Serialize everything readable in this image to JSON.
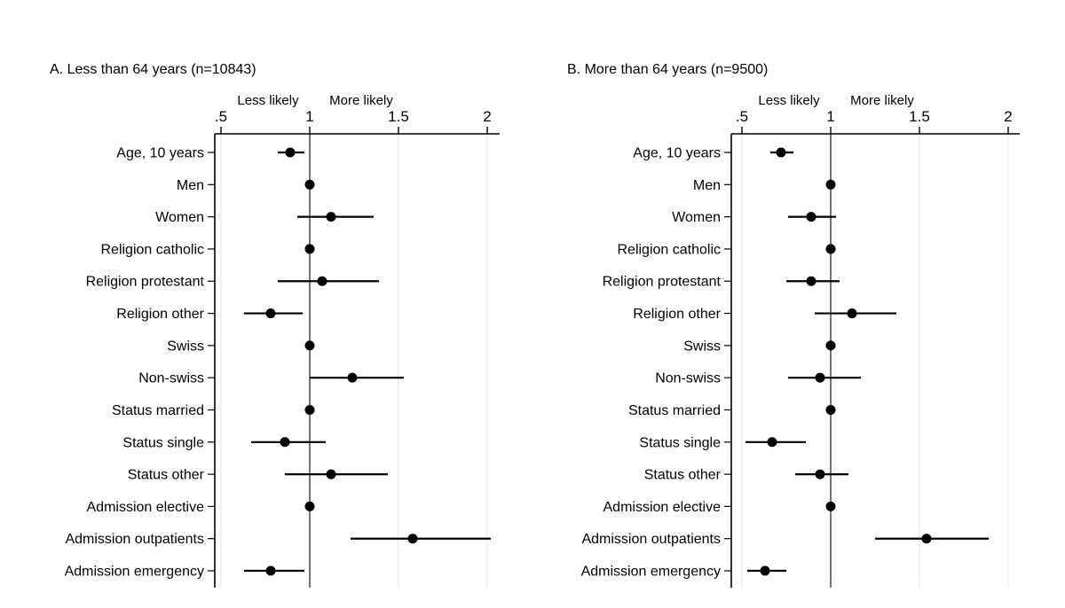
{
  "figure": {
    "background": "#ffffff",
    "colors": {
      "marker": "#000000",
      "ci_line": "#000000",
      "axis": "#000000",
      "reference_line": "#3a3a3a",
      "gridline": "#e6efed",
      "text": "#000000"
    }
  },
  "chart_data": [
    {
      "type": "scatter",
      "subtype": "forest-dot-ci",
      "title": "A. Less than 64 years (n=10843)",
      "n": 10843,
      "xlabel_left": "Less likely",
      "xlabel_right": "More likely",
      "x_ticks": [
        0.5,
        1,
        1.5,
        2
      ],
      "x_tick_labels": [
        ".5",
        "1",
        "1.5",
        "2"
      ],
      "xlim": [
        0.46,
        2.07
      ],
      "reference_line": 1,
      "grid": "vertical-light",
      "categories": [
        "Age, 10 years",
        "Men",
        "Women",
        "Religion catholic",
        "Religion protestant",
        "Religion other",
        "Swiss",
        "Non-swiss",
        "Status married",
        "Status single",
        "Status other",
        "Admission elective",
        "Admission outpatients",
        "Admission emergency"
      ],
      "estimates": [
        0.89,
        1.0,
        1.12,
        1.0,
        1.07,
        0.78,
        1.0,
        1.24,
        1.0,
        0.86,
        1.12,
        1.0,
        1.58,
        0.78
      ],
      "ci_low": [
        0.82,
        null,
        0.93,
        null,
        0.82,
        0.63,
        null,
        1.0,
        null,
        0.67,
        0.86,
        null,
        1.23,
        0.63
      ],
      "ci_high": [
        0.97,
        null,
        1.36,
        null,
        1.39,
        0.96,
        null,
        1.53,
        null,
        1.09,
        1.44,
        null,
        2.02,
        0.97
      ]
    },
    {
      "type": "scatter",
      "subtype": "forest-dot-ci",
      "title": "B. More than 64 years (n=9500)",
      "n": 9500,
      "xlabel_left": "Less likely",
      "xlabel_right": "More likely",
      "x_ticks": [
        0.5,
        1,
        1.5,
        2
      ],
      "x_tick_labels": [
        ".5",
        "1",
        "1.5",
        "2"
      ],
      "xlim": [
        0.45,
        2.06
      ],
      "reference_line": 1,
      "grid": "vertical-light",
      "categories": [
        "Age, 10 years",
        "Men",
        "Women",
        "Religion catholic",
        "Religion protestant",
        "Religion other",
        "Swiss",
        "Non-swiss",
        "Status married",
        "Status single",
        "Status other",
        "Admission elective",
        "Admission outpatients",
        "Admission emergency"
      ],
      "estimates": [
        0.72,
        1.0,
        0.89,
        1.0,
        0.89,
        1.12,
        1.0,
        0.94,
        1.0,
        0.67,
        0.94,
        1.0,
        1.54,
        0.63
      ],
      "ci_low": [
        0.66,
        null,
        0.76,
        null,
        0.75,
        0.91,
        null,
        0.76,
        null,
        0.52,
        0.8,
        null,
        1.25,
        0.53
      ],
      "ci_high": [
        0.79,
        null,
        1.03,
        null,
        1.05,
        1.37,
        null,
        1.17,
        null,
        0.86,
        1.1,
        null,
        1.89,
        0.75
      ]
    }
  ]
}
